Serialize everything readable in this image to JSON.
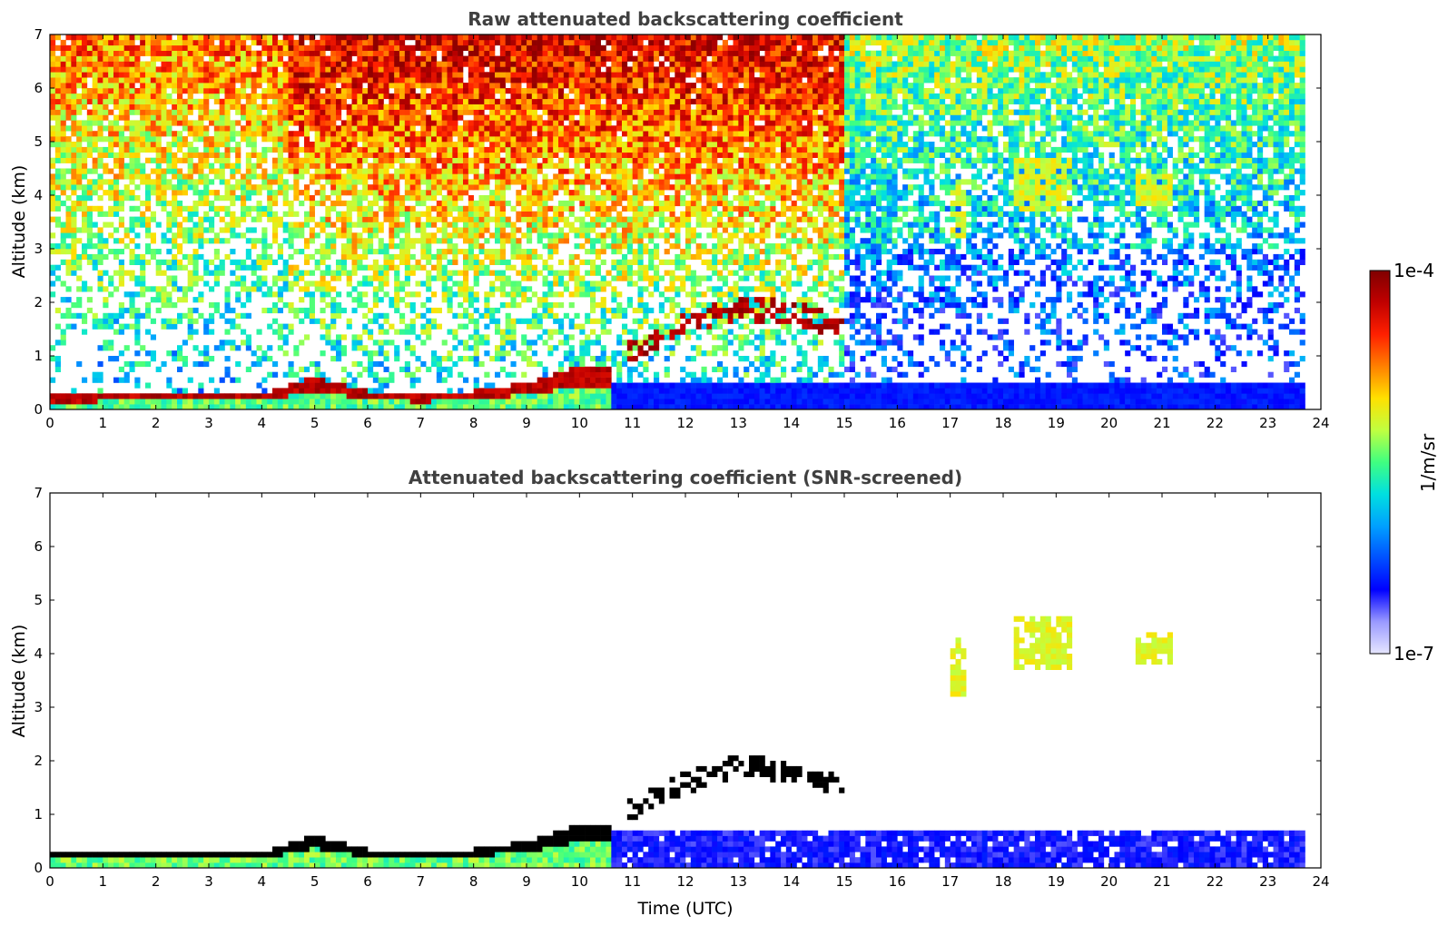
{
  "chart_data": [
    {
      "type": "heatmap",
      "title": "Raw attenuated backscattering coefficient",
      "xlabel": "",
      "ylabel": "Altitude (km)",
      "xlim": [
        0,
        24
      ],
      "ylim": [
        0,
        7
      ],
      "x_ticks": [
        "0",
        "1",
        "2",
        "3",
        "4",
        "5",
        "6",
        "7",
        "8",
        "9",
        "10",
        "11",
        "12",
        "13",
        "14",
        "15",
        "16",
        "17",
        "18",
        "19",
        "20",
        "21",
        "22",
        "23",
        "24"
      ],
      "y_ticks": [
        "0",
        "1",
        "2",
        "3",
        "4",
        "5",
        "6",
        "7"
      ],
      "colorscale": "jet",
      "log_scale": true,
      "data_end_hour": 23.7,
      "features": {
        "boundary_layer_top_km": [
          [
            0,
            0.25
          ],
          [
            2,
            0.3
          ],
          [
            4,
            0.3
          ],
          [
            5,
            0.6
          ],
          [
            6,
            0.35
          ],
          [
            7,
            0.25
          ],
          [
            8,
            0.35
          ],
          [
            9,
            0.5
          ],
          [
            10,
            0.8
          ]
        ],
        "cloud_layer_km": [
          [
            11,
            1.1
          ],
          [
            12,
            1.6
          ],
          [
            13,
            1.9
          ],
          [
            14,
            1.8
          ],
          [
            14.6,
            1.65
          ],
          [
            15,
            1.6
          ]
        ],
        "elevated_aerosol_layers": [
          {
            "time_range": [
              18.2,
              19.3
            ],
            "altitude_range_km": [
              3.7,
              4.7
            ]
          },
          {
            "time_range": [
              20.5,
              21.2
            ],
            "altitude_range_km": [
              3.8,
              4.4
            ]
          },
          {
            "time_range": [
              17.0,
              17.3
            ],
            "altitude_range_km": [
              3.2,
              4.3
            ]
          }
        ],
        "missing_profile_hours": [
          8.8,
          17.2,
          19.3,
          19.7,
          20.2,
          20.6,
          22.1,
          22.9,
          23.2
        ]
      }
    },
    {
      "type": "heatmap",
      "title": "Attenuated backscattering coefficient (SNR-screened)",
      "xlabel": "Time (UTC)",
      "ylabel": "Altitude (km)",
      "xlim": [
        0,
        24
      ],
      "ylim": [
        0,
        7
      ],
      "x_ticks": [
        "0",
        "1",
        "2",
        "3",
        "4",
        "5",
        "6",
        "7",
        "8",
        "9",
        "10",
        "11",
        "12",
        "13",
        "14",
        "15",
        "16",
        "17",
        "18",
        "19",
        "20",
        "21",
        "22",
        "23",
        "24"
      ],
      "y_ticks": [
        "0",
        "1",
        "2",
        "3",
        "4",
        "5",
        "6",
        "7"
      ],
      "colorscale": "jet",
      "log_scale": true,
      "data_end_hour": 23.7
    }
  ],
  "colorbar": {
    "label": "1/m/sr",
    "max_label": "1e-4",
    "min_label": "1e-7",
    "scale": "log",
    "colors": [
      "#e6e6ff",
      "#9a9aff",
      "#0000ff",
      "#0050ff",
      "#00a0ff",
      "#00e0e0",
      "#40ff80",
      "#c0ff40",
      "#ffe000",
      "#ff8000",
      "#ff2000",
      "#c00000",
      "#800000"
    ]
  }
}
